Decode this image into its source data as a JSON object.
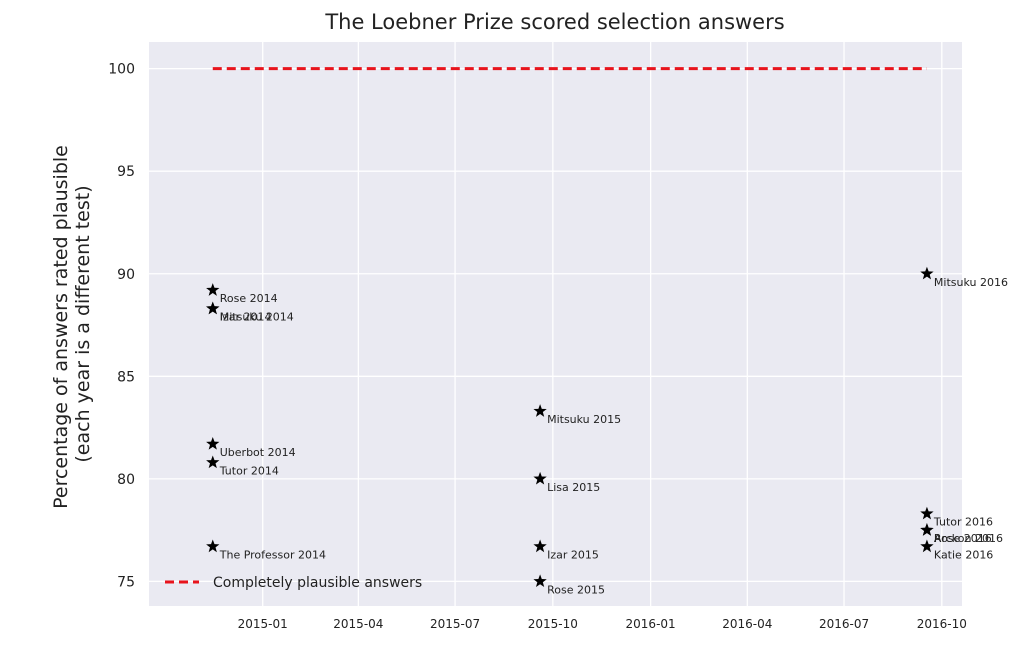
{
  "chart_data": {
    "type": "scatter",
    "title": "The Loebner Prize scored selection answers",
    "xlabel": "",
    "ylabel_lines": [
      "Percentage of answers rated plausible",
      "(each year is a different test)"
    ],
    "x_axis": "date",
    "xlim": [
      "2014-09-16",
      "2016-10-20"
    ],
    "ylim": [
      73.8,
      101.3
    ],
    "x_ticks": [
      "2015-01-01",
      "2015-04-01",
      "2015-07-01",
      "2015-10-01",
      "2016-01-01",
      "2016-04-01",
      "2016-07-01",
      "2016-10-01"
    ],
    "x_tick_labels": [
      "2015-01",
      "2015-04",
      "2015-07",
      "2015-10",
      "2016-01",
      "2016-04",
      "2016-07",
      "2016-10"
    ],
    "y_ticks": [
      75,
      80,
      85,
      90,
      95,
      100
    ],
    "y_tick_labels": [
      "75",
      "80",
      "85",
      "90",
      "95",
      "100"
    ],
    "grid": true,
    "legend_position": "lower-left",
    "line_series": {
      "name": "Completely plausible answers",
      "color": "#e8141c",
      "style": "dashed",
      "x": [
        "2014-11-15",
        "2016-09-17"
      ],
      "y": [
        100,
        100
      ]
    },
    "points": [
      {
        "label": "Rose 2014",
        "date": "2014-11-15",
        "value": 89.2
      },
      {
        "label": "Mitsuku 2014",
        "date": "2014-11-15",
        "value": 88.3
      },
      {
        "label": "Izar 2014",
        "date": "2014-11-15",
        "value": 88.3
      },
      {
        "label": "Uberbot 2014",
        "date": "2014-11-15",
        "value": 81.7
      },
      {
        "label": "Tutor 2014",
        "date": "2014-11-15",
        "value": 80.8
      },
      {
        "label": "The Professor 2014",
        "date": "2014-11-15",
        "value": 76.7
      },
      {
        "label": "Mitsuku 2015",
        "date": "2015-09-19",
        "value": 83.3
      },
      {
        "label": "Lisa 2015",
        "date": "2015-09-19",
        "value": 80.0
      },
      {
        "label": "Izar 2015",
        "date": "2015-09-19",
        "value": 76.7
      },
      {
        "label": "Rose 2015",
        "date": "2015-09-19",
        "value": 75.0
      },
      {
        "label": "Mitsuku 2016",
        "date": "2016-09-17",
        "value": 90.0
      },
      {
        "label": "Tutor 2016",
        "date": "2016-09-17",
        "value": 78.3
      },
      {
        "label": "Rose 2016",
        "date": "2016-09-17",
        "value": 77.5
      },
      {
        "label": "Arckon 2016",
        "date": "2016-09-17",
        "value": 77.5
      },
      {
        "label": "Katie 2016",
        "date": "2016-09-17",
        "value": 76.7
      }
    ],
    "marker": "star",
    "marker_color": "#000000",
    "plot_background": "#eaeaf2",
    "grid_color": "#ffffff"
  }
}
